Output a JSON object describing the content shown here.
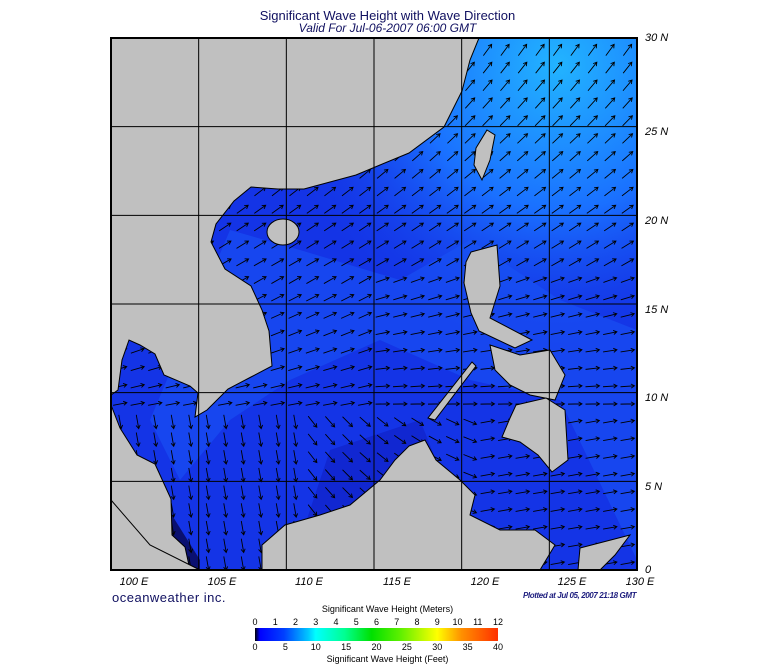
{
  "title": "Significant Wave Height with Wave Direction",
  "subtitle": "Valid For Jul-06-2007 06:00 GMT",
  "lon_labels": [
    "100 E",
    "105 E",
    "110 E",
    "115 E",
    "120 E",
    "125 E",
    "130 E"
  ],
  "lat_labels": [
    "30 N",
    "25 N",
    "20 N",
    "15 N",
    "10 N",
    "5 N",
    "0"
  ],
  "brand": "oceanweather inc.",
  "plotted": "Plotted at Jul 05, 2007 21:18 GMT",
  "colorbar": {
    "title_meters": "Significant Wave Height (Meters)",
    "title_feet": "Significant Wave Height (Feet)",
    "meters_ticks": [
      "0",
      "1",
      "2",
      "3",
      "4",
      "5",
      "6",
      "7",
      "8",
      "9",
      "10",
      "11",
      "12"
    ],
    "feet_ticks": [
      "0",
      "5",
      "10",
      "15",
      "20",
      "25",
      "30",
      "35",
      "40"
    ]
  },
  "colors": {
    "ocean": "#1434e6",
    "ocean_light": "#1e8cff",
    "land": "#c0c0c0",
    "text": "#101060"
  }
}
